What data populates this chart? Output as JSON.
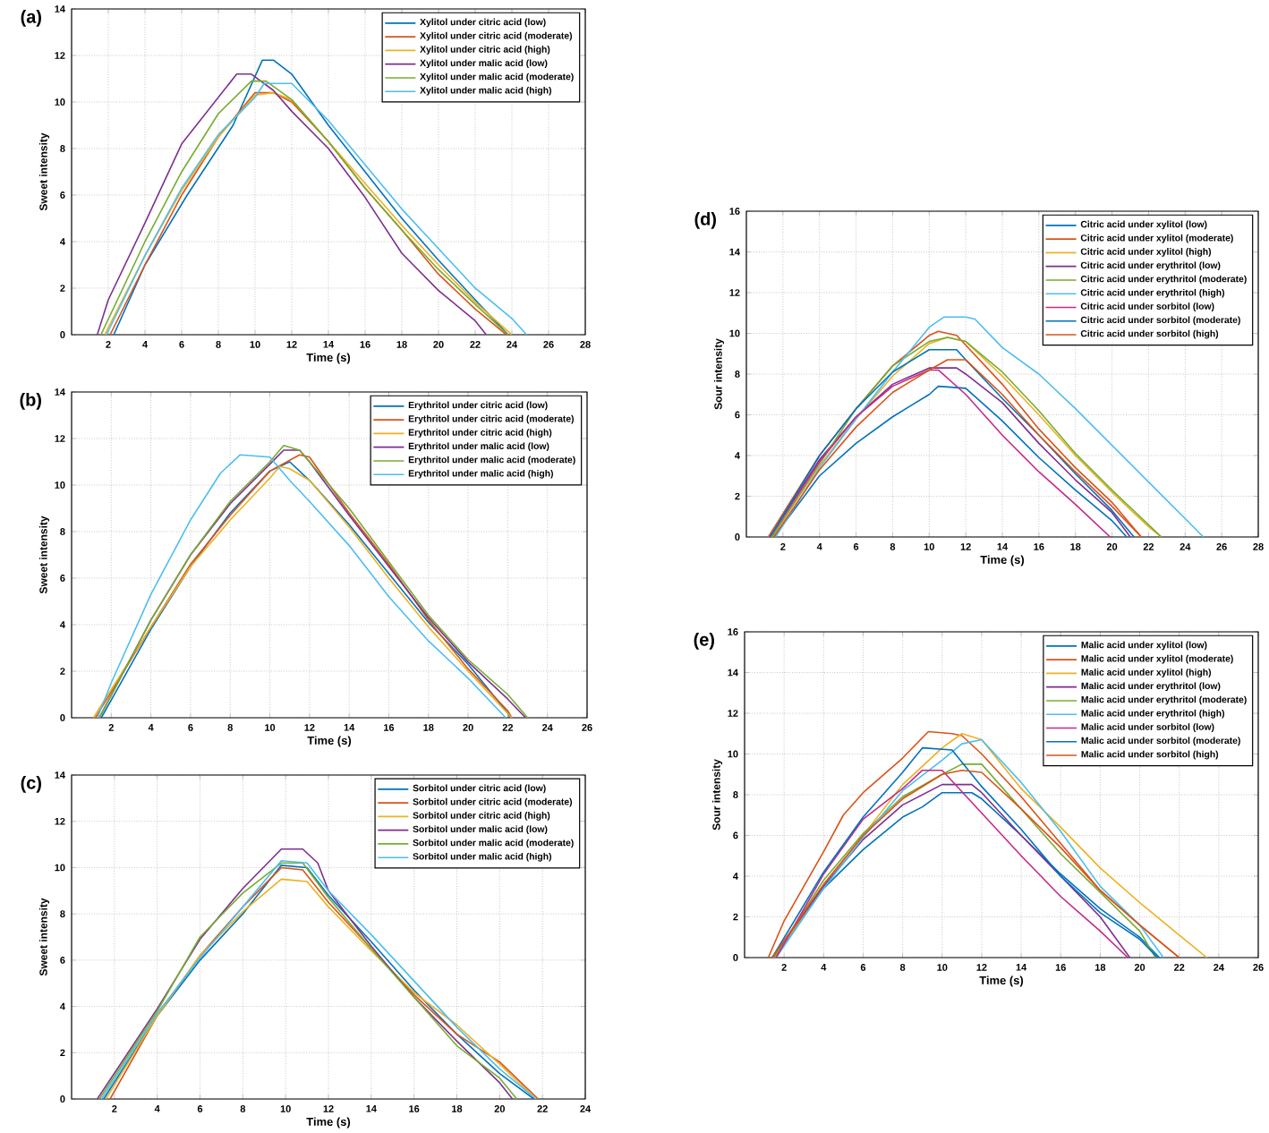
{
  "chart_data": [
    {
      "type": "line",
      "title": "(a)",
      "xlabel": "Time (s)",
      "ylabel": "Sweet intensity",
      "xlim": [
        0,
        28
      ],
      "ylim": [
        0,
        14
      ],
      "xticks": [
        2,
        4,
        6,
        8,
        10,
        12,
        14,
        16,
        18,
        20,
        22,
        24,
        26,
        28
      ],
      "yticks": [
        0,
        2,
        4,
        6,
        8,
        10,
        12,
        14
      ],
      "grid": true,
      "legend": "top right",
      "series": [
        {
          "name": "Xylitol under citric acid (low)",
          "color": "#0072bd",
          "x": [
            2.3,
            4,
            6.3,
            8.8,
            10.4,
            11,
            12,
            14,
            16,
            18,
            20,
            22,
            23.8
          ],
          "values": [
            0,
            3,
            6,
            9,
            11.8,
            11.8,
            11.2,
            9,
            7,
            5,
            3.2,
            1.5,
            0
          ]
        },
        {
          "name": "Xylitol under citric acid (moderate)",
          "color": "#d95319",
          "x": [
            2.1,
            4,
            6,
            8,
            10,
            11,
            12,
            14,
            16,
            18,
            20,
            22,
            23.7
          ],
          "values": [
            0,
            3,
            6,
            8.5,
            10.4,
            10.4,
            10,
            8.3,
            6.3,
            4.5,
            2.6,
            1.1,
            0
          ]
        },
        {
          "name": "Xylitol under citric acid (high)",
          "color": "#edb120",
          "x": [
            1.8,
            4,
            6,
            8,
            10,
            11,
            12,
            14,
            16,
            18,
            20,
            22,
            24
          ],
          "values": [
            0,
            3.4,
            6.2,
            8.5,
            10.3,
            10.4,
            10.1,
            8.3,
            6.5,
            4.7,
            3,
            1.4,
            0
          ]
        },
        {
          "name": "Xylitol under malic acid (low)",
          "color": "#7e2f8e",
          "x": [
            1.4,
            2,
            4,
            6,
            8,
            9,
            9.8,
            11,
            12,
            14,
            16,
            18,
            20,
            22,
            22.6
          ],
          "values": [
            0,
            1.5,
            4.8,
            8.2,
            10.2,
            11.2,
            11.2,
            10.5,
            9.6,
            8,
            5.9,
            3.5,
            1.9,
            0.6,
            0
          ]
        },
        {
          "name": "Xylitol under malic acid (moderate)",
          "color": "#77ac30",
          "x": [
            1.6,
            4,
            6,
            8,
            9.8,
            10.6,
            12,
            14,
            16,
            18,
            20,
            22,
            23.8
          ],
          "values": [
            0,
            4,
            7,
            9.5,
            10.9,
            10.9,
            10.1,
            8.3,
            6.3,
            4.5,
            2.8,
            1.3,
            0
          ]
        },
        {
          "name": "Xylitol under malic acid (high)",
          "color": "#4dbeee",
          "x": [
            1.9,
            4,
            6,
            8,
            10,
            10.5,
            12,
            14,
            16,
            18,
            20,
            22,
            24,
            24.8
          ],
          "values": [
            0,
            3.4,
            6.3,
            8.6,
            10.2,
            10.8,
            10.8,
            9.2,
            7.3,
            5.4,
            3.7,
            2,
            0.7,
            0
          ]
        }
      ]
    },
    {
      "type": "line",
      "title": "(b)",
      "xlabel": "Time (s)",
      "ylabel": "Sweet intensity",
      "xlim": [
        0,
        26
      ],
      "ylim": [
        0,
        14
      ],
      "xticks": [
        2,
        4,
        6,
        8,
        10,
        12,
        14,
        16,
        18,
        20,
        22,
        24,
        26
      ],
      "yticks": [
        0,
        2,
        4,
        6,
        8,
        10,
        12,
        14
      ],
      "grid": true,
      "legend": "top right",
      "series": [
        {
          "name": "Erythritol under citric acid (low)",
          "color": "#0072bd",
          "x": [
            1.5,
            4,
            6,
            8,
            10,
            11,
            12,
            14,
            16,
            18,
            20,
            22,
            22.1
          ],
          "values": [
            0,
            3.8,
            6.5,
            8.8,
            10.6,
            11,
            10.2,
            8.3,
            6.2,
            4.1,
            2.3,
            0.2,
            0
          ]
        },
        {
          "name": "Erythritol under citric acid (moderate)",
          "color": "#d95319",
          "x": [
            1.2,
            4,
            6,
            8,
            10,
            11.5,
            12,
            14,
            16,
            18,
            20,
            22,
            22.2
          ],
          "values": [
            0,
            3.9,
            6.6,
            8.7,
            10.6,
            11.3,
            11.2,
            8.8,
            6.6,
            4.2,
            2.1,
            0.3,
            0
          ]
        },
        {
          "name": "Erythritol under citric acid (high)",
          "color": "#edb120",
          "x": [
            1.1,
            4,
            6,
            8,
            10,
            10.5,
            11,
            12,
            14,
            16,
            18,
            20,
            22.2
          ],
          "values": [
            0,
            3.9,
            6.5,
            8.5,
            10.3,
            10.8,
            10.7,
            10.2,
            8.2,
            6,
            3.9,
            2,
            0
          ]
        },
        {
          "name": "Erythritol under malic acid (low)",
          "color": "#7e2f8e",
          "x": [
            1.4,
            4,
            6,
            8,
            10,
            10.7,
            11.5,
            12,
            14,
            16,
            18,
            20,
            22,
            22.9
          ],
          "values": [
            0,
            4.2,
            7,
            9.2,
            10.9,
            11.5,
            11.5,
            11,
            8.7,
            6.5,
            4.3,
            2.4,
            0.8,
            0
          ]
        },
        {
          "name": "Erythritol under malic acid (moderate)",
          "color": "#77ac30",
          "x": [
            1.4,
            4,
            6,
            8,
            10,
            10.7,
            11.5,
            14,
            16,
            18,
            20,
            22,
            23
          ],
          "values": [
            0,
            4.2,
            7,
            9.3,
            11,
            11.7,
            11.5,
            9,
            6.7,
            4.4,
            2.5,
            1,
            0
          ]
        },
        {
          "name": "Erythritol under malic acid (high)",
          "color": "#4dbeee",
          "x": [
            1.3,
            2,
            4,
            6,
            7.5,
            8.5,
            10,
            11,
            12,
            14,
            16,
            18,
            20,
            21.9
          ],
          "values": [
            0,
            1.5,
            5.3,
            8.5,
            10.5,
            11.3,
            11.2,
            10.2,
            9.3,
            7.4,
            5.2,
            3.3,
            1.7,
            0
          ]
        }
      ]
    },
    {
      "type": "line",
      "title": "(c)",
      "xlabel": "Time (s)",
      "ylabel": "Sweet intensity",
      "xlim": [
        0,
        24
      ],
      "ylim": [
        0,
        14
      ],
      "xticks": [
        2,
        4,
        6,
        8,
        10,
        12,
        14,
        16,
        18,
        20,
        22,
        24
      ],
      "yticks": [
        0,
        2,
        4,
        6,
        8,
        10,
        12,
        14
      ],
      "grid": true,
      "legend": "top right",
      "series": [
        {
          "name": "Sorbitol under citric acid (low)",
          "color": "#0072bd",
          "x": [
            1.5,
            4,
            6,
            8,
            9.8,
            11,
            12,
            14,
            16,
            18,
            20,
            21.6
          ],
          "values": [
            0,
            3.6,
            6,
            8,
            10.1,
            10,
            8.8,
            6.8,
            4.7,
            2.8,
            1.1,
            0
          ]
        },
        {
          "name": "Sorbitol under citric acid (moderate)",
          "color": "#d95319",
          "x": [
            1.8,
            4,
            6,
            8,
            9.8,
            10.8,
            12,
            14,
            16,
            18,
            20,
            21.8
          ],
          "values": [
            0,
            3.6,
            6.2,
            8.3,
            10,
            9.9,
            8.5,
            6.5,
            4.5,
            2.8,
            1.6,
            0
          ]
        },
        {
          "name": "Sorbitol under citric acid (high)",
          "color": "#edb120",
          "x": [
            1.6,
            4,
            6,
            8,
            9.8,
            11,
            12,
            14,
            16,
            18,
            20,
            21.7
          ],
          "values": [
            0,
            3.6,
            6.2,
            8.1,
            9.5,
            9.4,
            8.3,
            6.4,
            4.6,
            3.2,
            1.5,
            0
          ]
        },
        {
          "name": "Sorbitol under malic acid (low)",
          "color": "#7e2f8e",
          "x": [
            1.2,
            4,
            6,
            8,
            9.8,
            10.8,
            11.5,
            12,
            14,
            16,
            18,
            20,
            20.6
          ],
          "values": [
            0,
            3.9,
            6.9,
            9.1,
            10.8,
            10.8,
            10.2,
            9,
            6.6,
            4.4,
            2.5,
            0.7,
            0
          ]
        },
        {
          "name": "Sorbitol under malic acid (moderate)",
          "color": "#77ac30",
          "x": [
            1.3,
            4,
            6,
            8,
            9.8,
            10.8,
            12,
            14,
            16,
            18,
            20,
            20.8
          ],
          "values": [
            0,
            3.8,
            7,
            8.9,
            10.2,
            10.2,
            8.7,
            6.5,
            4.4,
            2.3,
            0.9,
            0
          ]
        },
        {
          "name": "Sorbitol under malic acid (high)",
          "color": "#4dbeee",
          "x": [
            1.4,
            4,
            6,
            8,
            9.8,
            11,
            12,
            14,
            16,
            18,
            20,
            21.7
          ],
          "values": [
            0,
            3.7,
            6.1,
            8.3,
            10.3,
            10.2,
            9,
            7.1,
            5.1,
            3.1,
            1.3,
            0
          ]
        }
      ]
    },
    {
      "type": "line",
      "title": "(d)",
      "xlabel": "Time (s)",
      "ylabel": "Sour intensity",
      "xlim": [
        0,
        28
      ],
      "ylim": [
        0,
        16
      ],
      "xticks": [
        2,
        4,
        6,
        8,
        10,
        12,
        14,
        16,
        18,
        20,
        22,
        24,
        26,
        28
      ],
      "yticks": [
        0,
        2,
        4,
        6,
        8,
        10,
        12,
        14,
        16
      ],
      "grid": true,
      "legend": "top right",
      "series": [
        {
          "name": "Citric acid under xylitol (low)",
          "color": "#0072bd",
          "x": [
            1.5,
            4,
            6,
            8,
            10,
            10.5,
            12,
            14,
            16,
            18,
            20,
            20.8
          ],
          "values": [
            0,
            3,
            4.6,
            5.9,
            7,
            7.4,
            7.3,
            5.7,
            3.9,
            2.3,
            0.8,
            0
          ]
        },
        {
          "name": "Citric acid under xylitol (moderate)",
          "color": "#d95319",
          "x": [
            1.2,
            4,
            6,
            8,
            10,
            10.5,
            11.5,
            14,
            16,
            18,
            20,
            21.6
          ],
          "values": [
            0,
            4,
            6.3,
            8.4,
            9.9,
            10.1,
            9.9,
            7.5,
            5.3,
            3.4,
            1.7,
            0
          ]
        },
        {
          "name": "Citric acid under xylitol (high)",
          "color": "#edb120",
          "x": [
            1.4,
            4,
            6,
            8,
            10,
            11,
            12,
            14,
            16,
            18,
            20,
            22,
            22.7
          ],
          "values": [
            0,
            3.5,
            5.8,
            7.9,
            9.5,
            9.8,
            9.6,
            7.9,
            6,
            4,
            2.2,
            0.5,
            0
          ]
        },
        {
          "name": "Citric acid under erythritol (low)",
          "color": "#7e2f8e",
          "x": [
            1.3,
            4,
            6,
            8,
            10,
            11.5,
            12,
            14,
            16,
            18,
            20,
            21
          ],
          "values": [
            0,
            3.8,
            5.9,
            7.5,
            8.3,
            8.3,
            8,
            6.6,
            4.6,
            2.8,
            1.2,
            0
          ]
        },
        {
          "name": "Citric acid under erythritol (moderate)",
          "color": "#77ac30",
          "x": [
            1.4,
            4,
            6,
            8,
            10,
            11,
            12,
            14,
            16,
            18,
            20,
            22,
            22.7
          ],
          "values": [
            0,
            3.6,
            6.3,
            8.4,
            9.6,
            9.8,
            9.6,
            8.1,
            6.2,
            4.1,
            2.3,
            0.6,
            0
          ]
        },
        {
          "name": "Citric acid under erythritol (high)",
          "color": "#4dbeee",
          "x": [
            1.6,
            4,
            6,
            8,
            10,
            10.8,
            12,
            12.5,
            14,
            16,
            18,
            20,
            22,
            24,
            25
          ],
          "values": [
            0,
            3.4,
            5.8,
            8.1,
            10.3,
            10.8,
            10.8,
            10.7,
            9.3,
            8,
            6.3,
            4.5,
            2.7,
            0.9,
            0
          ]
        },
        {
          "name": "Citric acid under sorbitol (low)",
          "color": "#c42a8a",
          "x": [
            1.3,
            4,
            6,
            8,
            10,
            10.5,
            12,
            14,
            16,
            18,
            19.9
          ],
          "values": [
            0,
            3.7,
            5.9,
            7.4,
            8.2,
            8.2,
            7,
            5,
            3.2,
            1.6,
            0
          ]
        },
        {
          "name": "Citric acid under sorbitol (moderate)",
          "color": "#0072bd",
          "x": [
            1.3,
            4,
            6,
            8,
            10,
            11.5,
            12,
            14,
            16,
            18,
            20,
            21.2
          ],
          "values": [
            0,
            4,
            6.3,
            8.1,
            9.2,
            9.2,
            8.7,
            6.8,
            5,
            3.1,
            1.3,
            0
          ]
        },
        {
          "name": "Citric acid under sorbitol (high)",
          "color": "#d95319",
          "x": [
            1.5,
            4,
            6,
            8,
            10,
            11,
            12,
            14,
            16,
            18,
            20,
            21.6
          ],
          "values": [
            0,
            3.3,
            5.4,
            7.1,
            8.2,
            8.7,
            8.7,
            7,
            5,
            3.2,
            1.5,
            0
          ]
        }
      ]
    },
    {
      "type": "line",
      "title": "(e)",
      "xlabel": "Time (s)",
      "ylabel": "Sour intensity",
      "xlim": [
        0,
        26
      ],
      "ylim": [
        0,
        16
      ],
      "xticks": [
        2,
        4,
        6,
        8,
        10,
        12,
        14,
        16,
        18,
        20,
        22,
        24,
        26
      ],
      "yticks": [
        0,
        2,
        4,
        6,
        8,
        10,
        12,
        14,
        16
      ],
      "grid": true,
      "legend": "top right",
      "series": [
        {
          "name": "Malic acid under xylitol (low)",
          "color": "#0072bd",
          "x": [
            1.5,
            4,
            6,
            8,
            9,
            10,
            11.5,
            12,
            14,
            16,
            18,
            20,
            21
          ],
          "values": [
            0,
            3.4,
            5.3,
            6.9,
            7.4,
            8.1,
            8.1,
            7.8,
            6,
            4.1,
            2.4,
            1,
            0
          ]
        },
        {
          "name": "Malic acid under xylitol (moderate)",
          "color": "#d95319",
          "x": [
            1.2,
            2,
            4,
            5,
            6,
            8,
            9.3,
            10.5,
            11,
            12,
            14,
            16,
            18,
            20,
            22
          ],
          "values": [
            0,
            1.8,
            5.2,
            7,
            8.1,
            9.8,
            11.1,
            11,
            10.9,
            10,
            7.9,
            5.6,
            3.3,
            1.6,
            0
          ]
        },
        {
          "name": "Malic acid under xylitol (high)",
          "color": "#edb120",
          "x": [
            1.5,
            4,
            6,
            8,
            10,
            11,
            12,
            14,
            16,
            18,
            20,
            22,
            23.4
          ],
          "values": [
            0,
            3.5,
            6,
            8.5,
            10.3,
            11,
            10.7,
            8.3,
            6.4,
            4.4,
            2.7,
            1.1,
            0
          ]
        },
        {
          "name": "Malic acid under erythritol (low)",
          "color": "#7e2f8e",
          "x": [
            1.4,
            4,
            6,
            8,
            10,
            11.5,
            12,
            14,
            16,
            18,
            19.5
          ],
          "values": [
            0,
            3.5,
            5.8,
            7.5,
            8.5,
            8.5,
            8.1,
            6,
            4,
            2,
            0
          ]
        },
        {
          "name": "Malic acid under erythritol (moderate)",
          "color": "#77ac30",
          "x": [
            1.5,
            4,
            6,
            8,
            10,
            11,
            12,
            14,
            16,
            18,
            20,
            20.8
          ],
          "values": [
            0,
            3.8,
            6.1,
            7.9,
            9,
            9.5,
            9.5,
            7.3,
            5.1,
            3.2,
            1.3,
            0
          ]
        },
        {
          "name": "Malic acid under erythritol (high)",
          "color": "#4dbeee",
          "x": [
            1.6,
            4,
            6,
            8,
            10,
            11,
            12,
            14,
            16,
            18,
            20,
            21.2
          ],
          "values": [
            0,
            3.4,
            5.9,
            8.2,
            9.7,
            10.5,
            10.7,
            8.6,
            6.2,
            3.5,
            1.6,
            0
          ]
        },
        {
          "name": "Malic acid under sorbitol (low)",
          "color": "#c42a8a",
          "x": [
            1.6,
            4,
            6,
            8,
            9,
            10,
            12,
            14,
            16,
            18,
            19.4
          ],
          "values": [
            0,
            4.1,
            6.8,
            8.3,
            9.2,
            9.2,
            7.1,
            5,
            3,
            1.3,
            0
          ]
        },
        {
          "name": "Malic acid under sorbitol (moderate)",
          "color": "#0072bd",
          "x": [
            1.4,
            4,
            6,
            8,
            9,
            10.5,
            12,
            14,
            16,
            18,
            20,
            20.9
          ],
          "values": [
            0,
            4.2,
            6.9,
            9.1,
            10.3,
            10.2,
            8.4,
            6.3,
            4,
            2.2,
            0.9,
            0
          ]
        },
        {
          "name": "Malic acid under sorbitol (high)",
          "color": "#d95319",
          "x": [
            1.4,
            4,
            6,
            8,
            10,
            11,
            12,
            14,
            16,
            18,
            20,
            22
          ],
          "values": [
            0,
            3.6,
            6,
            7.8,
            9,
            9.2,
            9.1,
            7.3,
            5.4,
            3.3,
            1.6,
            0
          ]
        }
      ]
    }
  ]
}
